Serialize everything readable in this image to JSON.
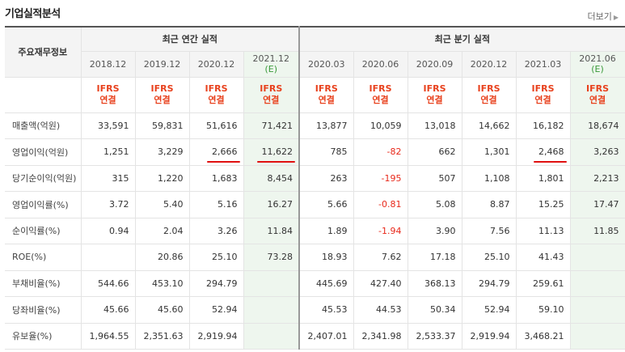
{
  "section_title": "기업실적분석",
  "more_label": "더보기",
  "group_headers": {
    "row_label_header": "주요재무정보",
    "annual": "최근 연간 실적",
    "quarterly": "최근 분기 실적"
  },
  "annual_periods": [
    {
      "period": "2018.12",
      "est": ""
    },
    {
      "period": "2019.12",
      "est": ""
    },
    {
      "period": "2020.12",
      "est": ""
    },
    {
      "period": "2021.12",
      "est": "(E)"
    }
  ],
  "quarterly_periods": [
    {
      "period": "2020.03",
      "est": ""
    },
    {
      "period": "2020.06",
      "est": ""
    },
    {
      "period": "2020.09",
      "est": ""
    },
    {
      "period": "2020.12",
      "est": ""
    },
    {
      "period": "2021.03",
      "est": ""
    },
    {
      "period": "2021.06",
      "est": "(E)"
    }
  ],
  "ifrs": {
    "line1": "IFRS",
    "line2": "연결"
  },
  "rows": [
    {
      "label": "매출액(억원)",
      "annual": [
        "33,591",
        "59,831",
        "51,616",
        "71,421"
      ],
      "quarterly": [
        "13,877",
        "10,059",
        "13,018",
        "14,662",
        "16,182",
        "18,674"
      ]
    },
    {
      "label": "영업이익(억원)",
      "annual": [
        "1,251",
        "3,229",
        "2,666",
        "11,622"
      ],
      "quarterly": [
        "785",
        "-82",
        "662",
        "1,301",
        "2,468",
        "3,263"
      ]
    },
    {
      "label": "당기순이익(억원)",
      "annual": [
        "315",
        "1,220",
        "1,683",
        "8,454"
      ],
      "quarterly": [
        "263",
        "-195",
        "507",
        "1,108",
        "1,801",
        "2,213"
      ]
    },
    {
      "label": "영업이익률(%)",
      "annual": [
        "3.72",
        "5.40",
        "5.16",
        "16.27"
      ],
      "quarterly": [
        "5.66",
        "-0.81",
        "5.08",
        "8.87",
        "15.25",
        "17.47"
      ]
    },
    {
      "label": "순이익률(%)",
      "annual": [
        "0.94",
        "2.04",
        "3.26",
        "11.84"
      ],
      "quarterly": [
        "1.89",
        "-1.94",
        "3.90",
        "7.56",
        "11.13",
        "11.85"
      ]
    },
    {
      "label": "ROE(%)",
      "annual": [
        "",
        "20.86",
        "25.10",
        "73.28"
      ],
      "quarterly": [
        "18.93",
        "7.62",
        "17.18",
        "25.10",
        "41.43",
        ""
      ]
    },
    {
      "label": "부채비율(%)",
      "annual": [
        "544.66",
        "453.10",
        "294.79",
        ""
      ],
      "quarterly": [
        "445.69",
        "427.40",
        "368.13",
        "294.79",
        "259.61",
        ""
      ]
    },
    {
      "label": "당좌비율(%)",
      "annual": [
        "45.66",
        "45.60",
        "52.94",
        ""
      ],
      "quarterly": [
        "45.53",
        "44.53",
        "50.34",
        "52.94",
        "59.10",
        ""
      ]
    },
    {
      "label": "유보율(%)",
      "annual": [
        "1,964.55",
        "2,351.63",
        "2,919.94",
        ""
      ],
      "quarterly": [
        "2,407.01",
        "2,341.98",
        "2,533.37",
        "2,919.94",
        "3,468.21",
        ""
      ]
    }
  ],
  "colors": {
    "ifrs_text": "#e8411d",
    "negative": "#e8281a",
    "estimate_bg": "#eef6ee",
    "estimate_label": "#3a9a3a",
    "underline": "#e01010"
  }
}
